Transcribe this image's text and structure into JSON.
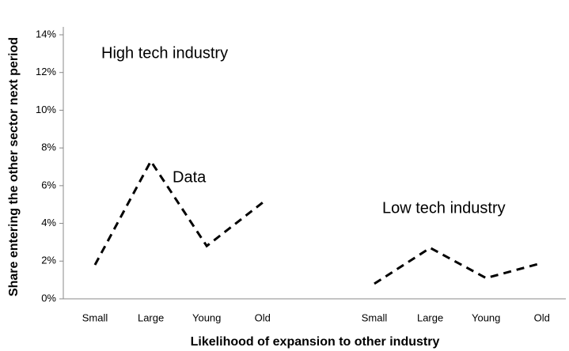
{
  "chart_data": {
    "type": "line",
    "x_label": "Likelihood of expansion to other industry",
    "y_label": "Share entering the other sector next period",
    "categories": [
      "Small",
      "Large",
      "Young",
      "Old",
      null,
      "Small",
      "Large",
      "Young",
      "Old"
    ],
    "values": [
      1.8,
      7.3,
      2.8,
      5.1,
      null,
      0.8,
      2.7,
      1.1,
      1.9
    ],
    "color": "#000000",
    "ylim": [
      0,
      14
    ],
    "yticks": [
      {
        "value": 0,
        "label": "0%"
      },
      {
        "value": 2,
        "label": "2%"
      },
      {
        "value": 4,
        "label": "4%"
      },
      {
        "value": 6,
        "label": "6%"
      },
      {
        "value": 8,
        "label": "8%"
      },
      {
        "value": 10,
        "label": "10%"
      },
      {
        "value": 12,
        "label": "12%"
      },
      {
        "value": 14,
        "label": "14%"
      }
    ],
    "annotations": [
      "High tech industry",
      "Data",
      "Low tech industry"
    ],
    "grid": false
  }
}
